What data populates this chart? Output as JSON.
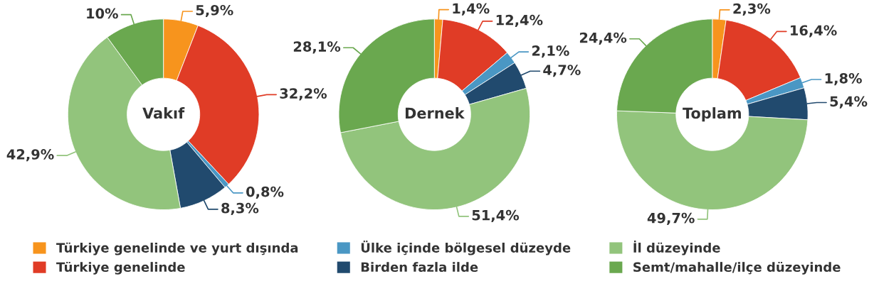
{
  "chart_data": [
    {
      "type": "donut",
      "title": "Vakıf",
      "categories": [
        "Türkiye genelinde ve yurt dışında",
        "Türkiye genelinde",
        "Ülke içinde bölgesel düzeyde",
        "Birden fazla ilde",
        "İl düzeyinde",
        "Semt/mahalle/ilçe düzeyinde"
      ],
      "values": [
        5.9,
        32.2,
        0.8,
        8.3,
        42.9,
        10
      ],
      "value_labels": [
        "5,9%",
        "32,2%",
        "0,8%",
        "8,3%",
        "42,9%",
        "10%"
      ],
      "colors": [
        "#f7941d",
        "#e03c26",
        "#4a97c4",
        "#214a6e",
        "#92c47c",
        "#6aa84f"
      ],
      "legend": "bottom"
    },
    {
      "type": "donut",
      "title": "Dernek",
      "values": [
        1.4,
        12.4,
        2.1,
        4.7,
        51.4,
        28.1
      ],
      "value_labels": [
        "1,4%",
        "12,4%",
        "2,1%",
        "4,7%",
        "51,4%",
        "28,1%"
      ],
      "colors": [
        "#f7941d",
        "#e03c26",
        "#4a97c4",
        "#214a6e",
        "#92c47c",
        "#6aa84f"
      ]
    },
    {
      "type": "donut",
      "title": "Toplam",
      "values": [
        2.3,
        16.4,
        1.8,
        5.4,
        49.7,
        24.4
      ],
      "value_labels": [
        "2,3%",
        "16,4%",
        "1,8%",
        "5,4%",
        "49,7%",
        "24,4%"
      ],
      "colors": [
        "#f7941d",
        "#e03c26",
        "#4a97c4",
        "#214a6e",
        "#92c47c",
        "#6aa84f"
      ]
    }
  ]
}
